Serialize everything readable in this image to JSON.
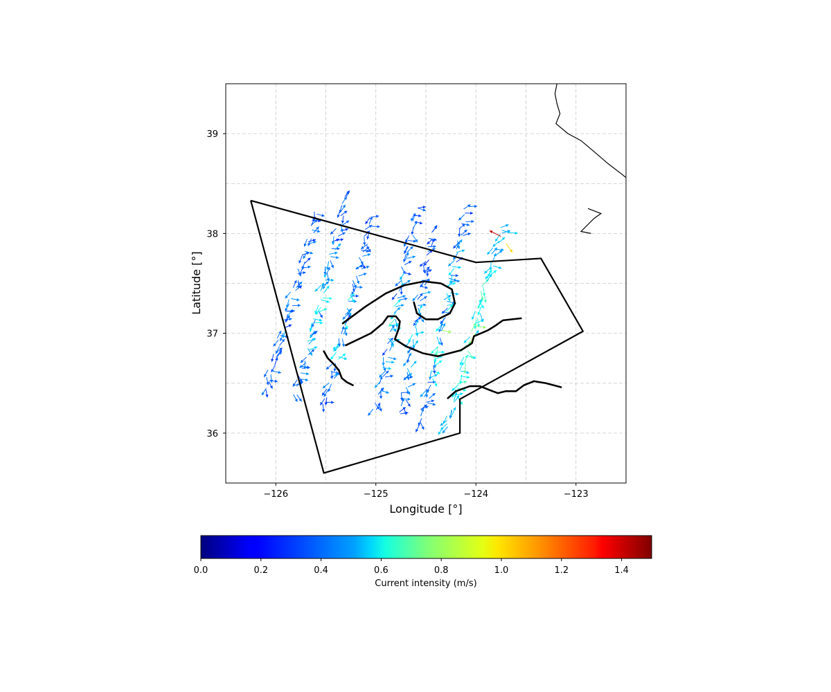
{
  "chart_data": {
    "type": "quiver",
    "title": "",
    "xlabel": "Longitude [°]",
    "ylabel": "Latitude [°]",
    "xlim": [
      -126.5,
      -122.5
    ],
    "ylim": [
      35.5,
      39.5
    ],
    "xticks": [
      -126,
      -125,
      -124,
      -123
    ],
    "xtick_labels": [
      "−126",
      "−125",
      "−124",
      "−123"
    ],
    "yticks": [
      36,
      37,
      38,
      39
    ],
    "ytick_labels": [
      "36",
      "37",
      "38",
      "39"
    ],
    "grid": true,
    "colorbar": {
      "label": "Current intensity (m/s)",
      "range": [
        0.0,
        1.5
      ],
      "colormap": "jet",
      "ticks": [
        0.0,
        0.2,
        0.4,
        0.6,
        0.8,
        1.0,
        1.2,
        1.4
      ],
      "tick_labels": [
        "0.0",
        "0.2",
        "0.4",
        "0.6",
        "0.8",
        "1.0",
        "1.2",
        "1.4"
      ]
    },
    "polygon": {
      "color": "#000000",
      "points": [
        [
          -126.25,
          38.33
        ],
        [
          -124.0,
          37.71
        ],
        [
          -123.35,
          37.75
        ],
        [
          -122.93,
          37.02
        ],
        [
          -124.16,
          36.34
        ],
        [
          -124.16,
          36.0
        ],
        [
          -125.52,
          35.6
        ],
        [
          -126.25,
          38.33
        ]
      ]
    },
    "drifter_tracks": [
      [
        [
          -125.33,
          37.1
        ],
        [
          -125.1,
          37.27
        ],
        [
          -124.9,
          37.4
        ],
        [
          -124.72,
          37.48
        ],
        [
          -124.52,
          37.52
        ],
        [
          -124.35,
          37.5
        ],
        [
          -124.24,
          37.44
        ],
        [
          -124.21,
          37.3
        ],
        [
          -124.26,
          37.2
        ],
        [
          -124.38,
          37.14
        ],
        [
          -124.5,
          37.14
        ],
        [
          -124.59,
          37.2
        ],
        [
          -124.62,
          37.31
        ]
      ],
      [
        [
          -125.3,
          36.88
        ],
        [
          -125.05,
          37.0
        ],
        [
          -124.93,
          37.1
        ],
        [
          -124.88,
          37.17
        ],
        [
          -124.8,
          37.17
        ],
        [
          -124.76,
          37.12
        ],
        [
          -124.77,
          37.05
        ],
        [
          -124.81,
          36.94
        ],
        [
          -124.7,
          36.87
        ],
        [
          -124.53,
          36.8
        ],
        [
          -124.38,
          36.77
        ],
        [
          -124.15,
          36.83
        ],
        [
          -124.04,
          36.9
        ],
        [
          -124.02,
          36.97
        ],
        [
          -123.88,
          37.03
        ],
        [
          -123.8,
          37.08
        ],
        [
          -123.73,
          37.13
        ],
        [
          -123.55,
          37.15
        ]
      ],
      [
        [
          -125.52,
          36.82
        ],
        [
          -125.48,
          36.75
        ],
        [
          -125.42,
          36.69
        ],
        [
          -125.37,
          36.63
        ],
        [
          -125.34,
          36.55
        ],
        [
          -125.29,
          36.51
        ],
        [
          -125.23,
          36.48
        ]
      ],
      [
        [
          -124.28,
          36.35
        ],
        [
          -124.2,
          36.42
        ],
        [
          -124.06,
          36.47
        ],
        [
          -123.96,
          36.47
        ],
        [
          -123.86,
          36.43
        ],
        [
          -123.78,
          36.4
        ],
        [
          -123.7,
          36.42
        ],
        [
          -123.6,
          36.42
        ],
        [
          -123.52,
          36.48
        ],
        [
          -123.42,
          36.52
        ],
        [
          -123.3,
          36.5
        ],
        [
          -123.15,
          36.46
        ]
      ]
    ],
    "coastline": {
      "color": "#000000",
      "mainland": [
        [
          -123.19,
          39.5
        ],
        [
          -123.21,
          39.4
        ],
        [
          -123.19,
          39.3
        ],
        [
          -123.16,
          39.2
        ],
        [
          -123.2,
          39.1
        ],
        [
          -123.08,
          39.0
        ],
        [
          -122.95,
          38.93
        ],
        [
          -122.82,
          38.82
        ],
        [
          -122.68,
          38.7
        ],
        [
          -122.55,
          38.6
        ],
        [
          -122.45,
          38.52
        ],
        [
          -122.4,
          38.4
        ],
        [
          -122.3,
          38.3
        ],
        [
          -122.15,
          38.2
        ],
        [
          -122.05,
          38.08
        ],
        [
          -122.1,
          37.96
        ],
        [
          -122.15,
          37.88
        ],
        [
          -122.05,
          37.82
        ],
        [
          -122.0,
          37.65
        ],
        [
          -121.9,
          37.5
        ]
      ],
      "point_reyes": [
        [
          -122.88,
          38.25
        ],
        [
          -122.75,
          38.2
        ],
        [
          -122.82,
          38.15
        ],
        [
          -122.95,
          38.02
        ],
        [
          -122.85,
          38.0
        ]
      ]
    },
    "vector_field": {
      "description_free": true,
      "arrow_color_value": "speed (m/s)",
      "transects": [
        {
          "start": [
            -126.1,
            36.45
          ],
          "end": [
            -125.6,
            38.2
          ],
          "min_speed": 0.25,
          "max_speed": 0.35,
          "count": 30
        },
        {
          "start": [
            -125.8,
            36.4
          ],
          "end": [
            -125.3,
            38.35
          ],
          "min_speed": 0.25,
          "max_speed": 0.55,
          "count": 32
        },
        {
          "start": [
            -125.5,
            36.3
          ],
          "end": [
            -125.05,
            38.15
          ],
          "min_speed": 0.25,
          "max_speed": 0.6,
          "count": 30
        },
        {
          "start": [
            -125.0,
            36.25
          ],
          "end": [
            -124.6,
            38.25
          ],
          "min_speed": 0.25,
          "max_speed": 0.55,
          "count": 32
        },
        {
          "start": [
            -124.75,
            36.2
          ],
          "end": [
            -124.45,
            38.0
          ],
          "min_speed": 0.25,
          "max_speed": 0.5,
          "count": 28
        },
        {
          "start": [
            -124.55,
            36.1
          ],
          "end": [
            -124.1,
            38.25
          ],
          "min_speed": 0.25,
          "max_speed": 0.75,
          "count": 34
        },
        {
          "start": [
            -124.3,
            36.05
          ],
          "end": [
            -123.75,
            38.05
          ],
          "min_speed": 0.4,
          "max_speed": 0.85,
          "count": 32
        }
      ],
      "hotspot": {
        "location": [
          -123.72,
          37.95
        ],
        "max_speed": 1.4
      }
    }
  }
}
